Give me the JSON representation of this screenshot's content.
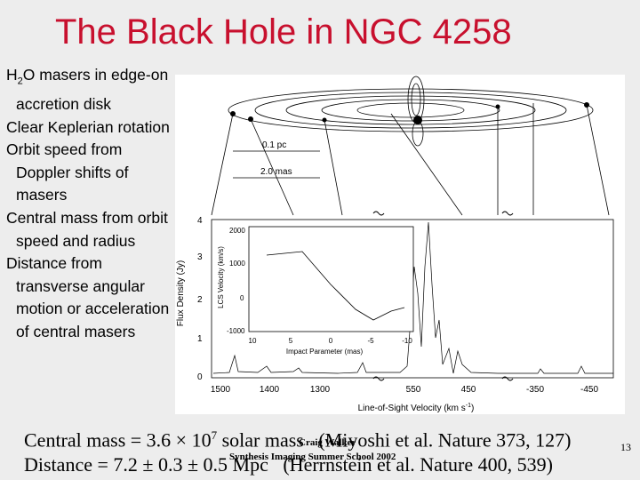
{
  "title": "The Black Hole in NGC 4258",
  "bullets": [
    {
      "pre": "H",
      "sub": "2",
      "post": "O masers in edge-on accretion disk"
    },
    {
      "text": "Clear Keplerian rotation"
    },
    {
      "text": "Orbit speed from Doppler shifts of masers"
    },
    {
      "text": "Central mass from orbit speed and radius"
    },
    {
      "text": "Distance from transverse angular motion or acceleration of central masers"
    }
  ],
  "figure": {
    "scale_pc": "0.1 pc",
    "scale_mas": "2.0 mas",
    "y_label": "Flux Density (Jy)",
    "y_ticks": [
      "4",
      "3",
      "2",
      "1",
      "0"
    ],
    "inset": {
      "y_label": "LCS Velocity (km/s)",
      "y_ticks": [
        "2000",
        "1000",
        "0",
        "-1000"
      ],
      "x_label": "Impact Parameter (mas)",
      "x_ticks": [
        "10",
        "5",
        "0",
        "-5",
        "-10"
      ]
    },
    "x_ticks": [
      "1500",
      "1400",
      "1300",
      "550",
      "450",
      "-350",
      "-450"
    ],
    "x_label": {
      "pre": "Line-of-Sight Velocity (km s",
      "sup": "-1",
      "post": ")"
    }
  },
  "footer": {
    "mass": {
      "pre": "Central mass = 3.6 × 10",
      "sup": "7",
      "post": " solar mass   (Miyoshi et al. Nature 373, 127)"
    },
    "distance": "Distance = 7.2 ± 0.3 ± 0.5 Mpc   (Herrnstein et al. Nature 400, 539)",
    "author": "Craig Walker",
    "school": "Synthesis Imaging Summer School 2002",
    "page": "13"
  }
}
